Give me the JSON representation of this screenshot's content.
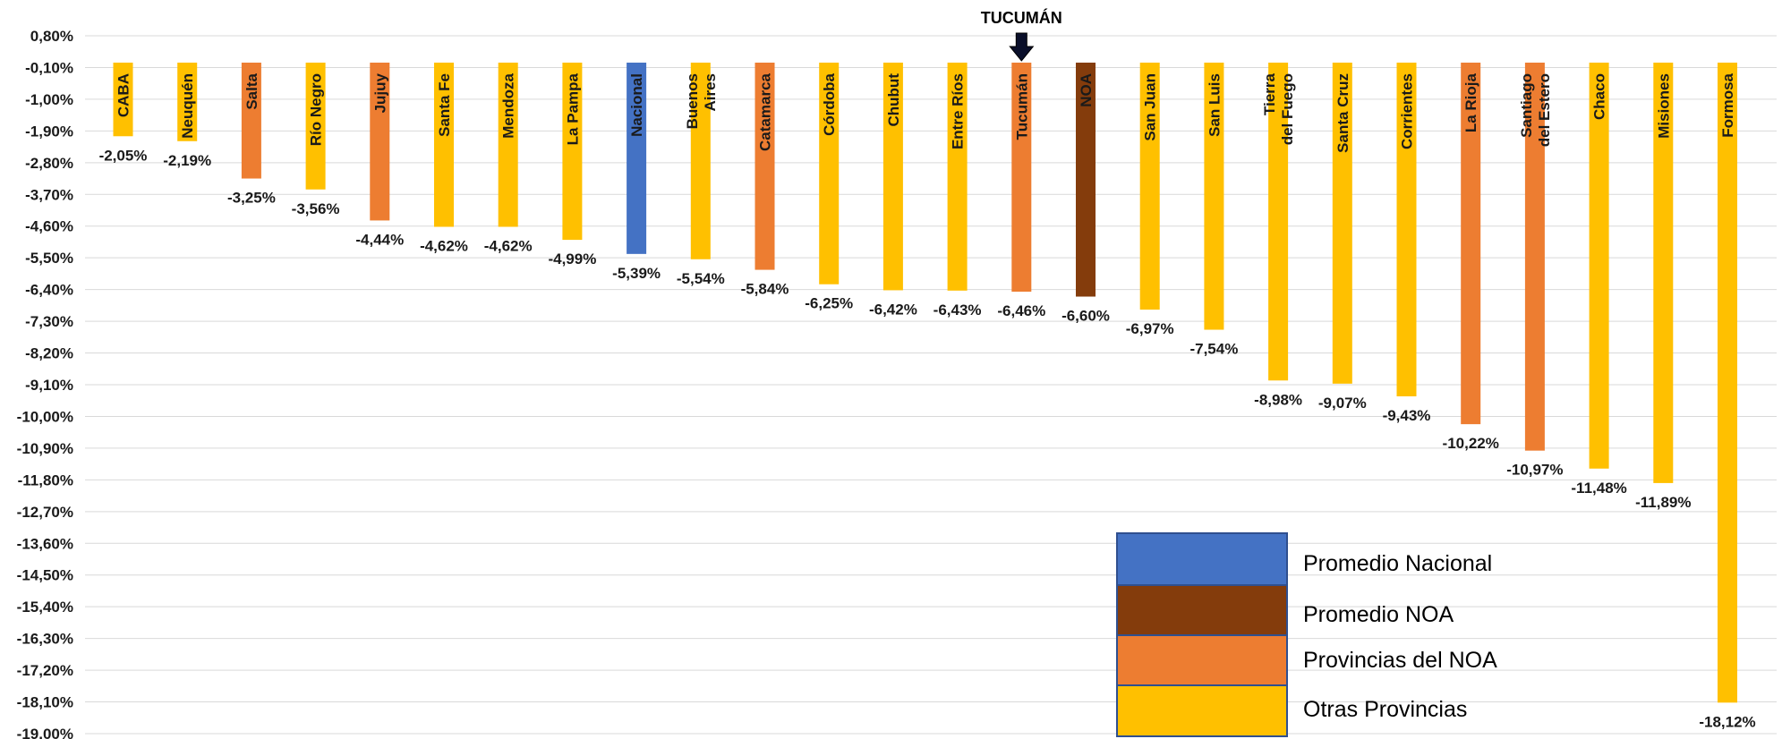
{
  "chart_data": {
    "type": "bar",
    "title": "",
    "xlabel": "",
    "ylabel": "",
    "ylim": [
      -19.0,
      0.8
    ],
    "y_ticks": [
      "0,80%",
      "-0,10%",
      "-1,00%",
      "-1,90%",
      "-2,80%",
      "-3,70%",
      "-4,60%",
      "-5,50%",
      "-6,40%",
      "-7,30%",
      "-8,20%",
      "-9,10%",
      "-10,00%",
      "-10,90%",
      "-11,80%",
      "-12,70%",
      "-13,60%",
      "-14,50%",
      "-15,40%",
      "-16,30%",
      "-17,20%",
      "-18,10%",
      "-19,00%"
    ],
    "y_tick_values": [
      0.8,
      -0.1,
      -1.0,
      -1.9,
      -2.8,
      -3.7,
      -4.6,
      -5.5,
      -6.4,
      -7.3,
      -8.2,
      -9.1,
      -10.0,
      -10.9,
      -11.8,
      -12.7,
      -13.6,
      -14.5,
      -15.4,
      -16.3,
      -17.2,
      -18.1,
      -19.0
    ],
    "grid": true,
    "bars": [
      {
        "category": [
          "CABA"
        ],
        "value": -2.05,
        "label": "-2,05%",
        "group": "otras"
      },
      {
        "category": [
          "Neuquén"
        ],
        "value": -2.19,
        "label": "-2,19%",
        "group": "otras"
      },
      {
        "category": [
          "Salta"
        ],
        "value": -3.25,
        "label": "-3,25%",
        "group": "noa_prov"
      },
      {
        "category": [
          "Río Negro"
        ],
        "value": -3.56,
        "label": "-3,56%",
        "group": "otras"
      },
      {
        "category": [
          "Jujuy"
        ],
        "value": -4.44,
        "label": "-4,44%",
        "group": "noa_prov"
      },
      {
        "category": [
          "Santa Fe"
        ],
        "value": -4.62,
        "label": "-4,62%",
        "group": "otras"
      },
      {
        "category": [
          "Mendoza"
        ],
        "value": -4.62,
        "label": "-4,62%",
        "group": "otras"
      },
      {
        "category": [
          "La Pampa"
        ],
        "value": -4.99,
        "label": "-4,99%",
        "group": "otras"
      },
      {
        "category": [
          "Nacional"
        ],
        "value": -5.39,
        "label": "-5,39%",
        "group": "nacional"
      },
      {
        "category": [
          "Buenos",
          "Aires"
        ],
        "value": -5.54,
        "label": "-5,54%",
        "group": "otras"
      },
      {
        "category": [
          "Catamarca"
        ],
        "value": -5.84,
        "label": "-5,84%",
        "group": "noa_prov"
      },
      {
        "category": [
          "Córdoba"
        ],
        "value": -6.25,
        "label": "-6,25%",
        "group": "otras"
      },
      {
        "category": [
          "Chubut"
        ],
        "value": -6.42,
        "label": "-6,42%",
        "group": "otras"
      },
      {
        "category": [
          "Entre Ríos"
        ],
        "value": -6.43,
        "label": "-6,43%",
        "group": "otras"
      },
      {
        "category": [
          "Tucumán"
        ],
        "value": -6.46,
        "label": "-6,46%",
        "group": "noa_prov"
      },
      {
        "category": [
          "NOA"
        ],
        "value": -6.6,
        "label": "-6,60%",
        "group": "noa"
      },
      {
        "category": [
          "San Juan"
        ],
        "value": -6.97,
        "label": "-6,97%",
        "group": "otras"
      },
      {
        "category": [
          "San Luis"
        ],
        "value": -7.54,
        "label": "-7,54%",
        "group": "otras"
      },
      {
        "category": [
          "Tierra",
          "del Fuego"
        ],
        "value": -8.98,
        "label": "-8,98%",
        "group": "otras"
      },
      {
        "category": [
          "Santa Cruz"
        ],
        "value": -9.07,
        "label": "-9,07%",
        "group": "otras"
      },
      {
        "category": [
          "Corrientes"
        ],
        "value": -9.43,
        "label": "-9,43%",
        "group": "otras"
      },
      {
        "category": [
          "La Rioja"
        ],
        "value": -10.22,
        "label": "-10,22%",
        "group": "noa_prov"
      },
      {
        "category": [
          "Santiago",
          "del Estero"
        ],
        "value": -10.97,
        "label": "-10,97%",
        "group": "noa_prov"
      },
      {
        "category": [
          "Chaco"
        ],
        "value": -11.48,
        "label": "-11,48%",
        "group": "otras"
      },
      {
        "category": [
          "Misiones"
        ],
        "value": -11.89,
        "label": "-11,89%",
        "group": "otras"
      },
      {
        "category": [
          "Formosa"
        ],
        "value": -18.12,
        "label": "-18,12%",
        "group": "otras"
      }
    ],
    "groups": {
      "nacional": {
        "color": "#4472C4"
      },
      "noa": {
        "color": "#843C0C"
      },
      "noa_prov": {
        "color": "#ED7D31"
      },
      "otras": {
        "color": "#FFC000"
      }
    },
    "legend": {
      "placement": "bottom-right",
      "items": [
        {
          "label": "Promedio Nacional",
          "group": "nacional"
        },
        {
          "label": "Promedio NOA",
          "group": "noa"
        },
        {
          "label": "Provincias del NOA",
          "group": "noa_prov"
        },
        {
          "label": "Otras Provincias",
          "group": "otras"
        }
      ]
    },
    "annotations": [
      {
        "text": "TUCUMÁN",
        "target": "Tucumán",
        "arrow": "down"
      }
    ]
  }
}
